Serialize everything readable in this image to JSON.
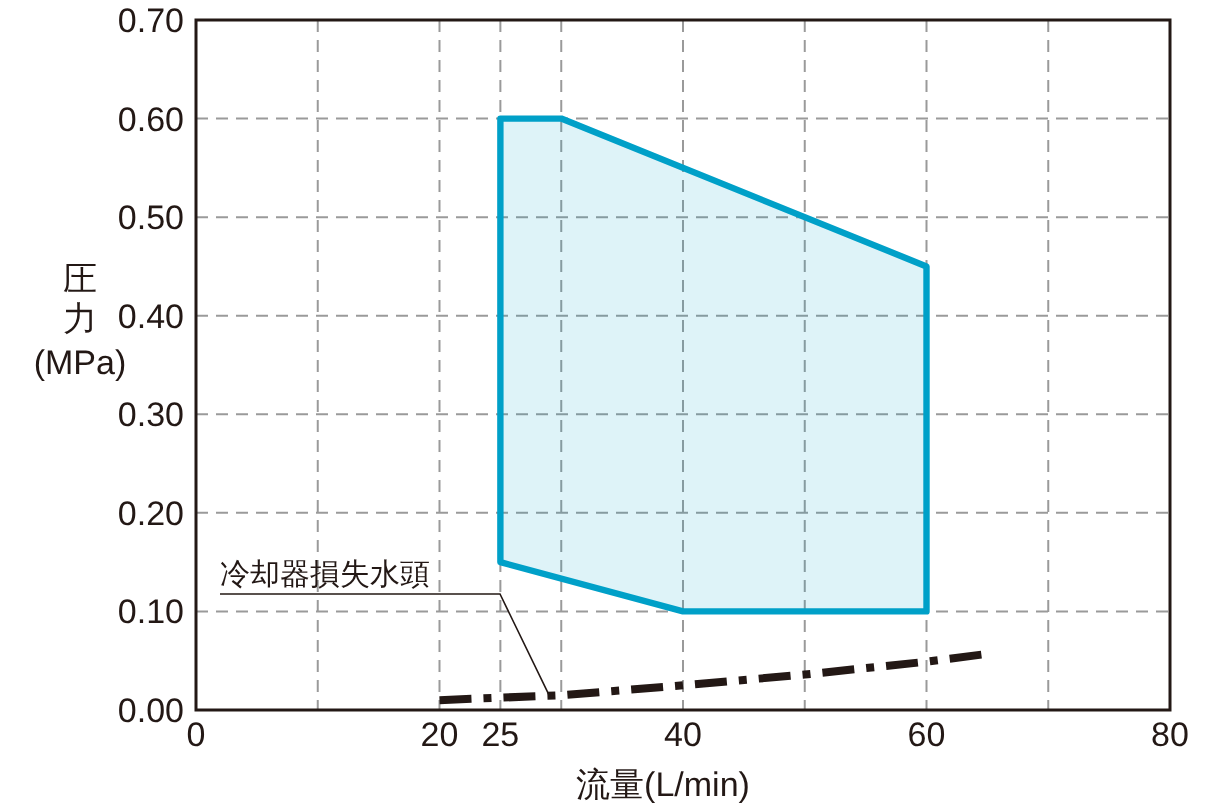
{
  "chart_data": {
    "type": "line",
    "xlabel": "流量(L/min)",
    "ylabel": "圧力(MPa)",
    "xlim": [
      0,
      80
    ],
    "ylim": [
      0,
      0.7
    ],
    "xticks": [
      0,
      {
        "value": 10,
        "label": null
      },
      20,
      25,
      {
        "value": 30,
        "label": null
      },
      40,
      {
        "value": 50,
        "label": null
      },
      60,
      {
        "value": 70,
        "label": null
      },
      80
    ],
    "yticks": [
      {
        "value": 0,
        "label": "0.00"
      },
      {
        "value": 0.1,
        "label": "0.10"
      },
      {
        "value": 0.2,
        "label": "0.20"
      },
      {
        "value": 0.3,
        "label": "0.30"
      },
      {
        "value": 0.4,
        "label": "0.40"
      },
      {
        "value": 0.5,
        "label": "0.50"
      },
      {
        "value": 0.6,
        "label": "0.60"
      },
      {
        "value": 0.7,
        "label": "0.70"
      }
    ],
    "grid": true,
    "series": [
      {
        "type": "area",
        "color": "#00a0c8",
        "x": [
          25,
          30,
          60,
          60,
          40,
          25,
          25
        ],
        "values": [
          0.6,
          0.6,
          0.45,
          0.1,
          0.1,
          0.15,
          0.6
        ]
      },
      {
        "color": "#231815",
        "line_style": "dashdot",
        "x": [
          20,
          30,
          40,
          50,
          60,
          65
        ],
        "values": [
          0.01,
          0.015,
          0.025,
          0.036,
          0.049,
          0.057
        ]
      }
    ],
    "annotations": [
      {
        "text": "冷却器損失水頭",
        "x": 29,
        "y": 0.015
      }
    ]
  }
}
